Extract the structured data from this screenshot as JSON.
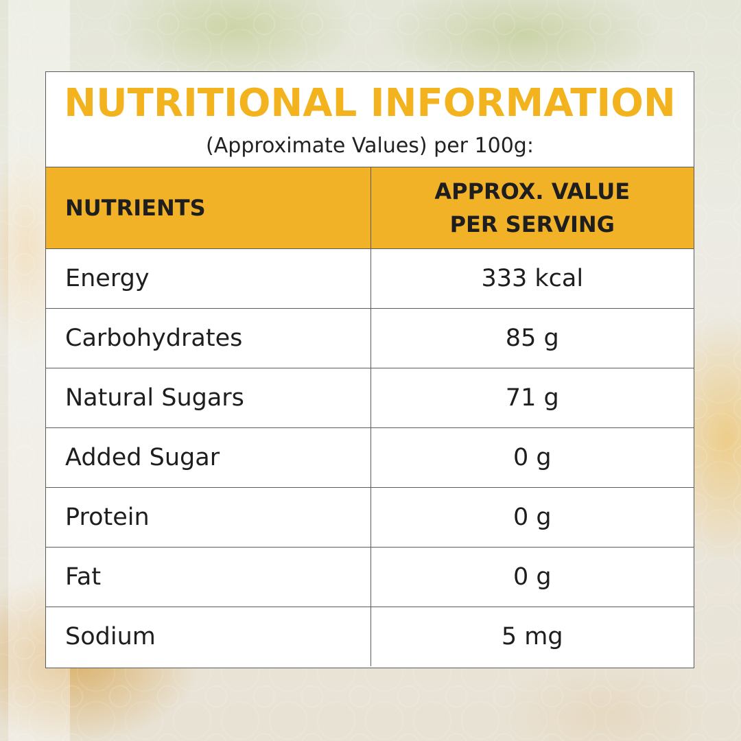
{
  "card": {
    "title": "NUTRITIONAL INFORMATION",
    "subtitle": "(Approximate Values) per 100g:"
  },
  "table": {
    "headers": {
      "nutrients": "NUTRIENTS",
      "value_line1": "APPROX. VALUE",
      "value_line2": "PER SERVING"
    },
    "rows": [
      {
        "nutrient": "Energy",
        "value": "333 kcal"
      },
      {
        "nutrient": "Carbohydrates",
        "value": "85 g"
      },
      {
        "nutrient": "Natural Sugars",
        "value": "71 g"
      },
      {
        "nutrient": "Added Sugar",
        "value": "0 g"
      },
      {
        "nutrient": "Protein",
        "value": "0 g"
      },
      {
        "nutrient": "Fat",
        "value": "0 g"
      },
      {
        "nutrient": "Sodium",
        "value": "5 mg"
      }
    ]
  },
  "colors": {
    "title": "#f2b31e",
    "header_fill": "#f2b228",
    "border": "#5a5a5a",
    "text": "#1e1e1e"
  }
}
